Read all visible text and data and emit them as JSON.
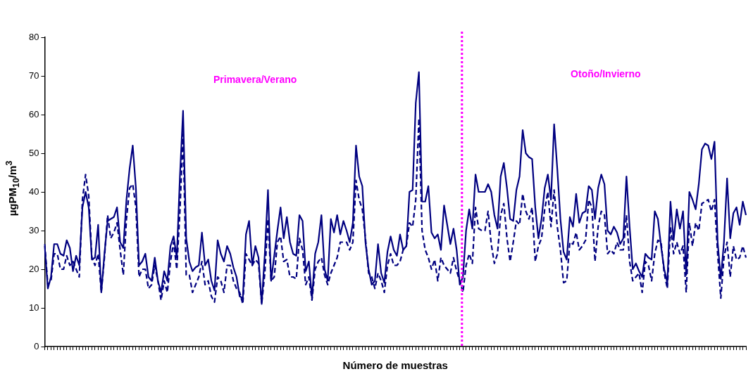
{
  "chart_data": {
    "type": "line",
    "xlabel": "Número de muestras",
    "ylabel": "µgPM$_{10}$/m$^{3}$",
    "categories": [
      null,
      null,
      null,
      null,
      null,
      null,
      null,
      null,
      null,
      null,
      null,
      null,
      null,
      null,
      null,
      null,
      null,
      null,
      null,
      null,
      null,
      null,
      null,
      null,
      null,
      null,
      null,
      null,
      null,
      null,
      null,
      null,
      null,
      null,
      null,
      null,
      null,
      null,
      null,
      null,
      null,
      null,
      null,
      null,
      null,
      null,
      null,
      null,
      null,
      null,
      null,
      null,
      null,
      null,
      null,
      null,
      null,
      null,
      null,
      null,
      null,
      null,
      null,
      null,
      null,
      null,
      null,
      null,
      null,
      null,
      null,
      null,
      null,
      null,
      null,
      null,
      null,
      null,
      null,
      null,
      null,
      null,
      null,
      null,
      null,
      null,
      null,
      null,
      null,
      null,
      null,
      null,
      null,
      null,
      null,
      null,
      null,
      null,
      null,
      null,
      null,
      null,
      null,
      null,
      null,
      null,
      null,
      null,
      null,
      null,
      null,
      null,
      null,
      null,
      null,
      null,
      null,
      null,
      null,
      null,
      null,
      null,
      null,
      null,
      null,
      null,
      null,
      null,
      null,
      null,
      null,
      null,
      null,
      null,
      null,
      null,
      null,
      null,
      null,
      null,
      null,
      null,
      null,
      null,
      null,
      null,
      null,
      null,
      null,
      null,
      null,
      null,
      null,
      null,
      null,
      null,
      null,
      null,
      null,
      null,
      null,
      null,
      null,
      null,
      null,
      null,
      null,
      null,
      null,
      null,
      null,
      null,
      null,
      null,
      null,
      null,
      null,
      null,
      null,
      null,
      null,
      null,
      null,
      null,
      null,
      null,
      null,
      null,
      null,
      null,
      null,
      null,
      null,
      null,
      null,
      null,
      null,
      null,
      null,
      null,
      null,
      null,
      null,
      null,
      null,
      null,
      null,
      null,
      null,
      null,
      null,
      null,
      null,
      null,
      null,
      null,
      null,
      null,
      null,
      null,
      null,
      null,
      null,
      null
    ],
    "series": [
      {
        "color": "#000080",
        "line_style": "solid",
        "values": [
          26,
          15,
          18,
          26.5,
          26.5,
          24,
          23.5,
          27.5,
          25.5,
          19.5,
          23.5,
          21,
          36,
          40,
          36,
          22.5,
          23,
          31.5,
          14,
          24,
          32.5,
          33,
          33.5,
          36,
          27,
          25.5,
          38,
          46,
          52,
          41,
          21,
          22,
          24,
          18,
          17,
          23,
          17,
          14,
          19.5,
          17,
          26,
          28.5,
          23,
          44,
          61,
          28,
          22,
          19.5,
          20.5,
          21,
          29.5,
          21,
          22.5,
          17,
          14.5,
          27.5,
          24,
          22,
          26,
          24,
          20.5,
          18,
          13,
          12.5,
          29,
          32.5,
          21,
          26,
          23,
          11,
          24,
          40.5,
          17,
          23.5,
          30,
          36,
          28,
          33.5,
          27,
          24,
          23.5,
          34,
          32.5,
          19.5,
          22,
          12.5,
          24,
          27,
          34,
          20,
          17,
          33,
          29.5,
          34,
          29,
          32.5,
          30,
          27,
          32,
          52,
          44,
          41.5,
          27,
          20,
          16,
          17,
          26.5,
          19,
          16.5,
          24.5,
          28.5,
          25,
          23.5,
          29,
          25,
          26,
          40,
          40.5,
          63,
          71,
          37.5,
          37.5,
          41.5,
          29.5,
          28,
          29,
          25,
          36.5,
          31.5,
          26.5,
          30.5,
          25,
          16,
          18,
          30,
          35.5,
          30.5,
          44.5,
          40,
          40,
          40,
          42,
          40,
          34,
          30.5,
          44,
          47.5,
          41,
          33,
          32.5,
          40.5,
          44,
          56,
          50,
          49,
          48.5,
          36,
          28,
          33,
          41,
          44.5,
          38,
          57.5,
          46,
          33,
          24.5,
          22.5,
          33.5,
          31,
          39.5,
          32,
          34.5,
          35,
          41.5,
          40.5,
          33,
          41,
          44.5,
          42,
          30,
          29,
          31,
          29.5,
          26.5,
          28,
          44,
          31,
          20,
          21.5,
          19.5,
          18,
          24,
          23,
          22.5,
          35,
          33,
          26,
          20,
          16.5,
          37.5,
          27.5,
          35.5,
          30.5,
          35,
          18.5,
          40,
          38,
          35.5,
          42,
          51,
          52.5,
          52,
          48.5,
          53,
          27,
          17.5,
          27,
          43.5,
          28,
          34.5,
          36,
          31.5,
          37.5,
          34
        ]
      },
      {
        "color": "#000080",
        "line_style": "dashed",
        "values": [
          26.5,
          16,
          17,
          24,
          24,
          20,
          20,
          23.5,
          21,
          22,
          20,
          18,
          38,
          44.5,
          39,
          23,
          21,
          24,
          14,
          23,
          34,
          28,
          29.5,
          32,
          25,
          18.5,
          33,
          41,
          42,
          36,
          18,
          20,
          20,
          15,
          16,
          21,
          17,
          12,
          17,
          14,
          22,
          27,
          20,
          35,
          55,
          18.5,
          18.5,
          14,
          16,
          18,
          22,
          16,
          17,
          13,
          11.5,
          18,
          17,
          14,
          21,
          21,
          17,
          15,
          14,
          11,
          24,
          22.5,
          21,
          22.5,
          21.5,
          11,
          19,
          33,
          17,
          18,
          27,
          28.5,
          22,
          22.5,
          18,
          18,
          17.5,
          28,
          25,
          16,
          18,
          12,
          20,
          22,
          23,
          18.5,
          16,
          19,
          21,
          23,
          27,
          27,
          27,
          25,
          27,
          43,
          38,
          35.5,
          28,
          19,
          18,
          15,
          19,
          17,
          14,
          21,
          24,
          21,
          21,
          22,
          25,
          26,
          32,
          31,
          38,
          59,
          30,
          25,
          23,
          20,
          22.5,
          17,
          23,
          21,
          20,
          19,
          23,
          19.5,
          17,
          14,
          21,
          24,
          21.5,
          36,
          30.5,
          30,
          30,
          35,
          26.5,
          21.5,
          24,
          34,
          37,
          28,
          22,
          27,
          32.5,
          31.5,
          39.5,
          35,
          33,
          36,
          22,
          26,
          28,
          35.5,
          40,
          31,
          40.5,
          31,
          25,
          16.5,
          17,
          27,
          26.5,
          29.5,
          25,
          26,
          27.5,
          38,
          36,
          22,
          31,
          35,
          34,
          24,
          25,
          24,
          27,
          25,
          25,
          34,
          22,
          17,
          18,
          19,
          14,
          22,
          21,
          17,
          24,
          27.5,
          27,
          19,
          15,
          31,
          24,
          27,
          24,
          26,
          14,
          32,
          26,
          32,
          30,
          37,
          37.5,
          38,
          35,
          38,
          24,
          12.5,
          23,
          27,
          18,
          26,
          22.5,
          23,
          26,
          23
        ]
      }
    ],
    "ylim": [
      0,
      80
    ],
    "yticks": [
      0,
      10,
      20,
      30,
      40,
      50,
      60,
      70,
      80
    ],
    "grid": false,
    "legend": false,
    "marker": "none",
    "annotations": [
      "Primavera/Verano",
      "Otoño/Invierno"
    ]
  }
}
